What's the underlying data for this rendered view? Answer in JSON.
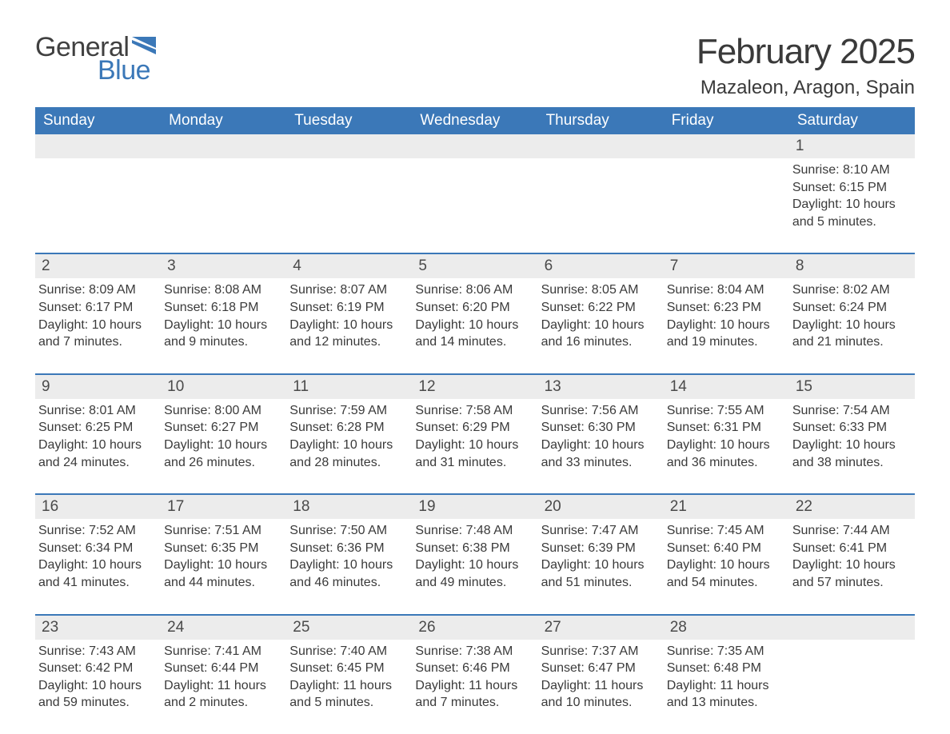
{
  "logo": {
    "text1": "General",
    "text2": "Blue"
  },
  "title": "February 2025",
  "location": "Mazaleon, Aragon, Spain",
  "colors": {
    "header_bg": "#3b78b8",
    "header_text": "#ffffff",
    "daynum_bg": "#ececec",
    "text": "#3a3a3a",
    "logo_blue": "#3b78b8",
    "separator": "#3b78b8",
    "background": "#ffffff"
  },
  "typography": {
    "title_fontsize": 44,
    "location_fontsize": 24,
    "weekday_fontsize": 19,
    "daynum_fontsize": 19,
    "body_fontsize": 16
  },
  "layout": {
    "columns": 7,
    "weeks": 5
  },
  "weekdays": [
    "Sunday",
    "Monday",
    "Tuesday",
    "Wednesday",
    "Thursday",
    "Friday",
    "Saturday"
  ],
  "weeks": [
    {
      "nums": [
        "",
        "",
        "",
        "",
        "",
        "",
        "1"
      ],
      "data": [
        "",
        "",
        "",
        "",
        "",
        "",
        "Sunrise: 8:10 AM\nSunset: 6:15 PM\nDaylight: 10 hours and 5 minutes."
      ]
    },
    {
      "nums": [
        "2",
        "3",
        "4",
        "5",
        "6",
        "7",
        "8"
      ],
      "data": [
        "Sunrise: 8:09 AM\nSunset: 6:17 PM\nDaylight: 10 hours and 7 minutes.",
        "Sunrise: 8:08 AM\nSunset: 6:18 PM\nDaylight: 10 hours and 9 minutes.",
        "Sunrise: 8:07 AM\nSunset: 6:19 PM\nDaylight: 10 hours and 12 minutes.",
        "Sunrise: 8:06 AM\nSunset: 6:20 PM\nDaylight: 10 hours and 14 minutes.",
        "Sunrise: 8:05 AM\nSunset: 6:22 PM\nDaylight: 10 hours and 16 minutes.",
        "Sunrise: 8:04 AM\nSunset: 6:23 PM\nDaylight: 10 hours and 19 minutes.",
        "Sunrise: 8:02 AM\nSunset: 6:24 PM\nDaylight: 10 hours and 21 minutes."
      ]
    },
    {
      "nums": [
        "9",
        "10",
        "11",
        "12",
        "13",
        "14",
        "15"
      ],
      "data": [
        "Sunrise: 8:01 AM\nSunset: 6:25 PM\nDaylight: 10 hours and 24 minutes.",
        "Sunrise: 8:00 AM\nSunset: 6:27 PM\nDaylight: 10 hours and 26 minutes.",
        "Sunrise: 7:59 AM\nSunset: 6:28 PM\nDaylight: 10 hours and 28 minutes.",
        "Sunrise: 7:58 AM\nSunset: 6:29 PM\nDaylight: 10 hours and 31 minutes.",
        "Sunrise: 7:56 AM\nSunset: 6:30 PM\nDaylight: 10 hours and 33 minutes.",
        "Sunrise: 7:55 AM\nSunset: 6:31 PM\nDaylight: 10 hours and 36 minutes.",
        "Sunrise: 7:54 AM\nSunset: 6:33 PM\nDaylight: 10 hours and 38 minutes."
      ]
    },
    {
      "nums": [
        "16",
        "17",
        "18",
        "19",
        "20",
        "21",
        "22"
      ],
      "data": [
        "Sunrise: 7:52 AM\nSunset: 6:34 PM\nDaylight: 10 hours and 41 minutes.",
        "Sunrise: 7:51 AM\nSunset: 6:35 PM\nDaylight: 10 hours and 44 minutes.",
        "Sunrise: 7:50 AM\nSunset: 6:36 PM\nDaylight: 10 hours and 46 minutes.",
        "Sunrise: 7:48 AM\nSunset: 6:38 PM\nDaylight: 10 hours and 49 minutes.",
        "Sunrise: 7:47 AM\nSunset: 6:39 PM\nDaylight: 10 hours and 51 minutes.",
        "Sunrise: 7:45 AM\nSunset: 6:40 PM\nDaylight: 10 hours and 54 minutes.",
        "Sunrise: 7:44 AM\nSunset: 6:41 PM\nDaylight: 10 hours and 57 minutes."
      ]
    },
    {
      "nums": [
        "23",
        "24",
        "25",
        "26",
        "27",
        "28",
        ""
      ],
      "data": [
        "Sunrise: 7:43 AM\nSunset: 6:42 PM\nDaylight: 10 hours and 59 minutes.",
        "Sunrise: 7:41 AM\nSunset: 6:44 PM\nDaylight: 11 hours and 2 minutes.",
        "Sunrise: 7:40 AM\nSunset: 6:45 PM\nDaylight: 11 hours and 5 minutes.",
        "Sunrise: 7:38 AM\nSunset: 6:46 PM\nDaylight: 11 hours and 7 minutes.",
        "Sunrise: 7:37 AM\nSunset: 6:47 PM\nDaylight: 11 hours and 10 minutes.",
        "Sunrise: 7:35 AM\nSunset: 6:48 PM\nDaylight: 11 hours and 13 minutes.",
        ""
      ]
    }
  ]
}
